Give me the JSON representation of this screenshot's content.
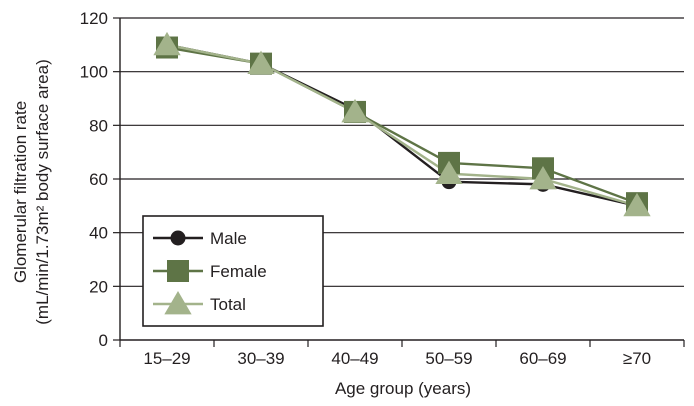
{
  "chart_data": {
    "type": "line",
    "categories": [
      "15–29",
      "30–39",
      "40–49",
      "50–59",
      "60–69",
      "≥70"
    ],
    "xlabel": "Age group (years)",
    "ylabel_line1": "Glomerular filtration rate",
    "ylabel_line2": "(mL/min/1.73m² body surface area)",
    "ylim": [
      0,
      120
    ],
    "yticks": [
      0,
      20,
      40,
      60,
      80,
      100,
      120
    ],
    "grid": true,
    "legend_position": "bottom-left",
    "series": [
      {
        "name": "Male",
        "marker": "circle",
        "color": "#231f20",
        "values": [
          110,
          103,
          86,
          59,
          58,
          50
        ]
      },
      {
        "name": "Female",
        "marker": "square",
        "color": "#5e7446",
        "values": [
          109,
          103,
          85,
          66,
          64,
          51
        ]
      },
      {
        "name": "Total",
        "marker": "triangle",
        "color": "#a3b38b",
        "values": [
          110,
          103,
          85,
          62,
          60,
          50
        ]
      }
    ]
  }
}
